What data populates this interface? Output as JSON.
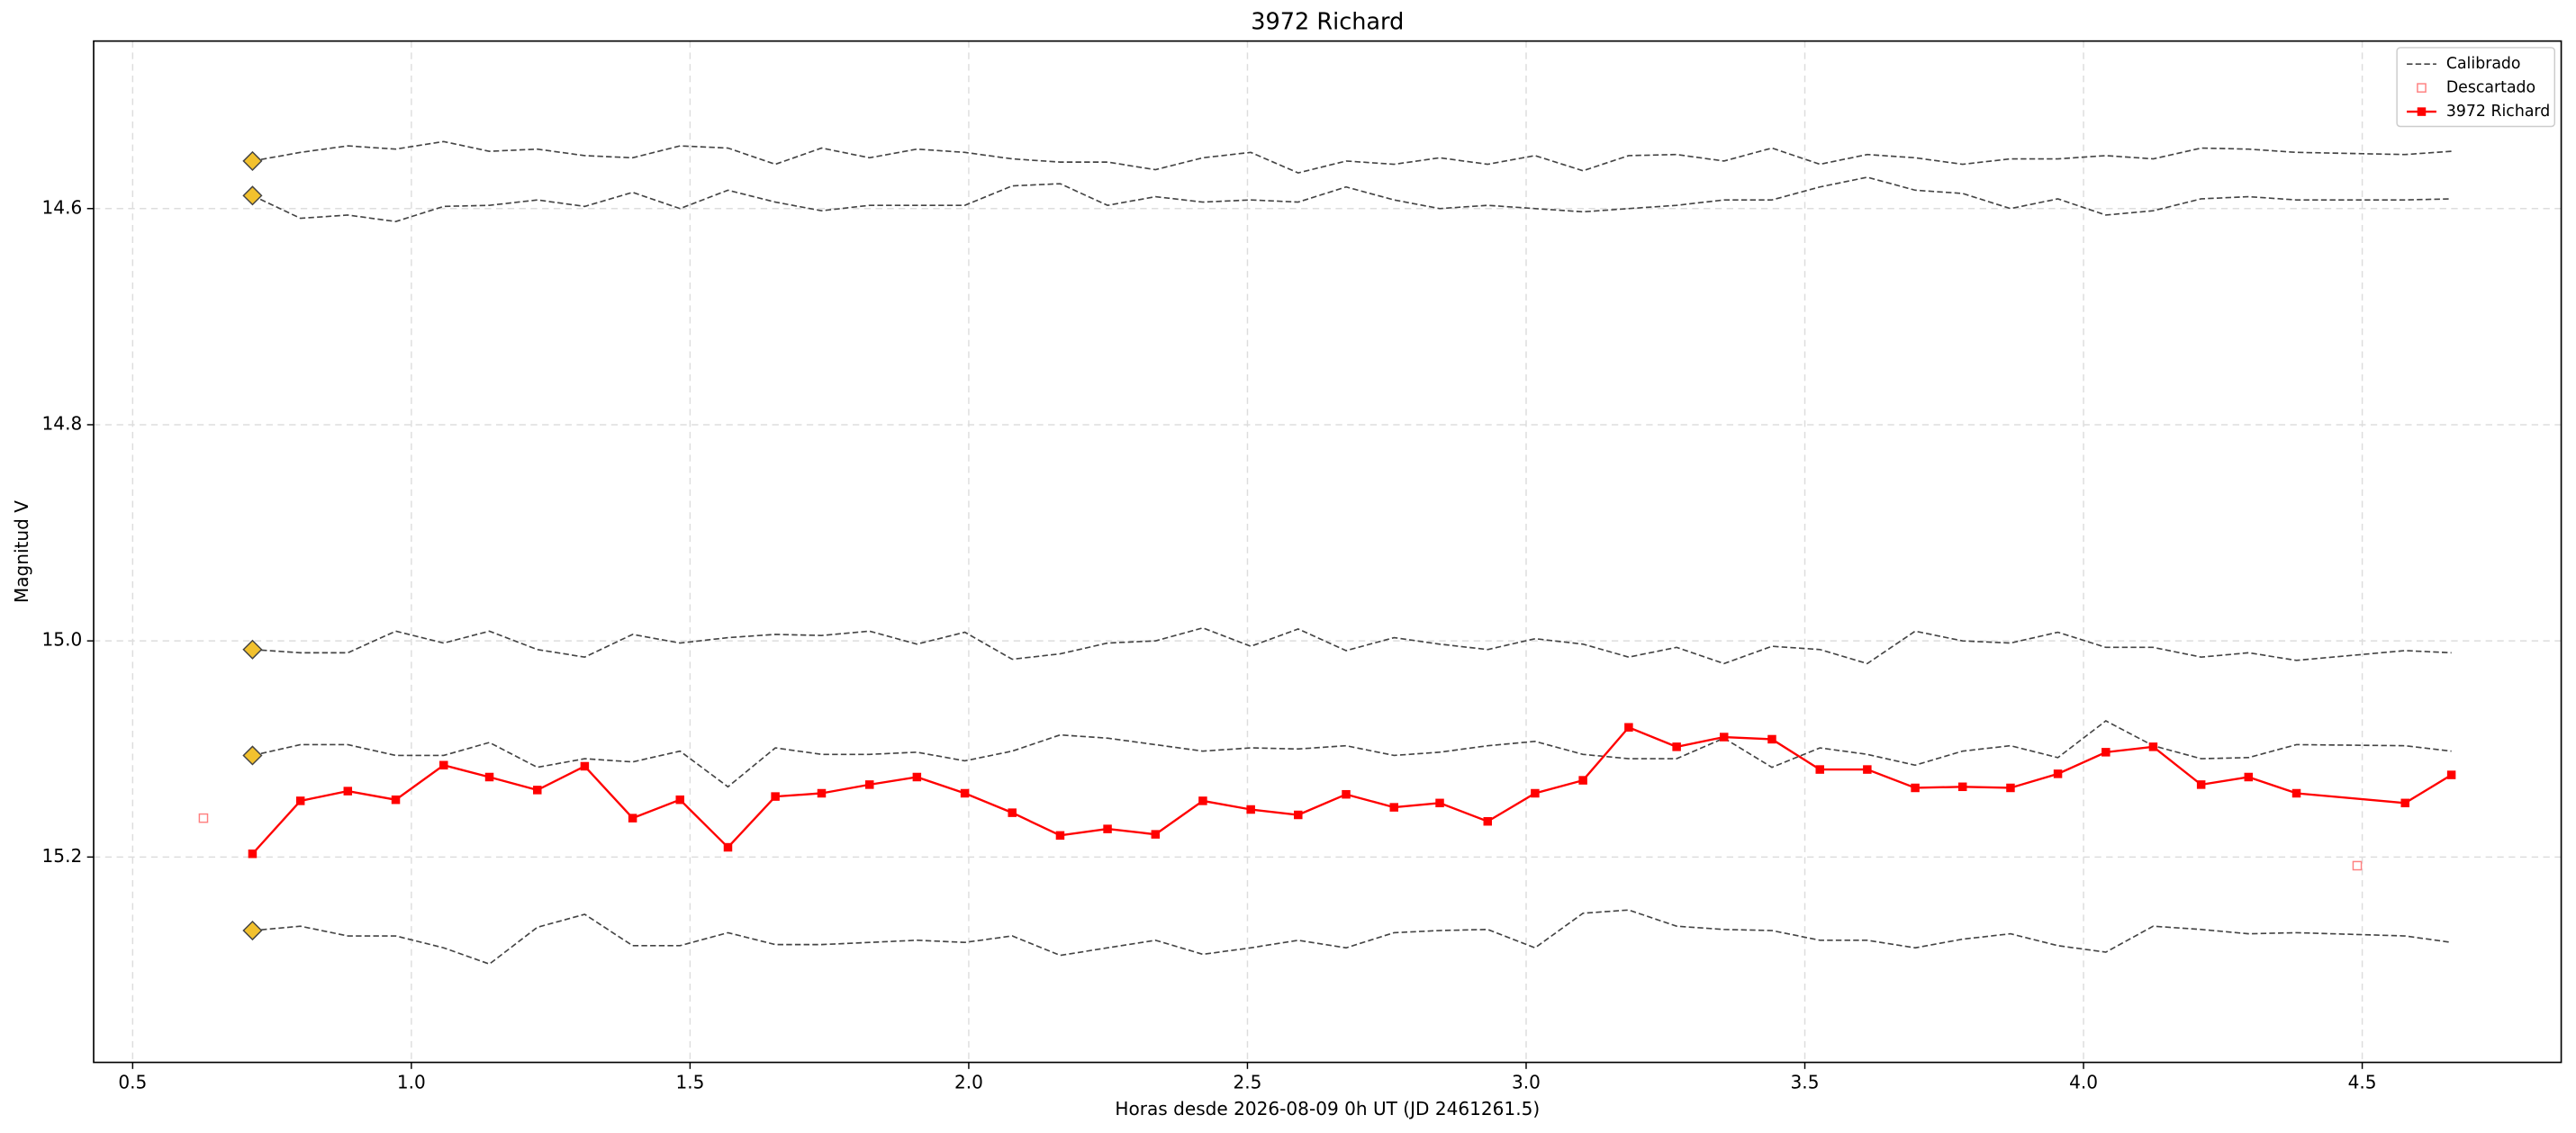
{
  "chart_data": {
    "type": "line",
    "title": "3972 Richard",
    "xlabel": "Horas desde 2026-08-09 0h UT (JD 2461261.5)",
    "ylabel": "Magnitud V",
    "xlim": [
      0.43,
      4.857
    ],
    "ylim": [
      14.445,
      15.39
    ],
    "y_inverted": true,
    "xticks": [
      0.5,
      {
        "value": 1,
        "label": "1.0"
      },
      1.5,
      {
        "value": 2,
        "label": "2.0"
      },
      2.5,
      {
        "value": 3,
        "label": "3.0"
      },
      3.5,
      {
        "value": 4,
        "label": "4.0"
      },
      4.5
    ],
    "yticks": [
      14.6,
      14.8,
      {
        "value": 15,
        "label": "15.0"
      },
      15.2
    ],
    "grid": true,
    "legend": "upper right",
    "x": [
      0.715,
      0.801,
      0.886,
      0.972,
      1.058,
      1.14,
      1.226,
      1.311,
      1.397,
      1.482,
      1.568,
      1.653,
      1.736,
      1.822,
      1.907,
      1.993,
      2.078,
      2.164,
      2.249,
      2.335,
      2.42,
      2.506,
      2.591,
      2.677,
      2.763,
      2.845,
      2.931,
      3.016,
      3.102,
      3.184,
      3.27,
      3.355,
      3.441,
      3.527,
      3.612,
      3.698,
      3.783,
      3.869,
      3.954,
      4.04,
      4.125,
      4.211,
      4.296,
      4.382,
      4.577,
      4.66
    ],
    "series": [
      {
        "name": "Calibrado",
        "color": "#444444",
        "style": "dashed",
        "marker_color": "#f2c12e",
        "lines": [
          [
            14.556,
            14.548,
            14.542,
            14.545,
            14.538,
            14.547,
            14.545,
            14.551,
            14.553,
            14.542,
            14.544,
            14.559,
            14.544,
            14.553,
            14.545,
            14.548,
            14.554,
            14.557,
            14.557,
            14.564,
            14.553,
            14.548,
            14.567,
            14.556,
            14.559,
            14.553,
            14.559,
            14.551,
            14.565,
            14.551,
            14.55,
            14.556,
            14.544,
            14.559,
            14.55,
            14.553,
            14.559,
            14.554,
            14.554,
            14.551,
            14.554,
            14.544,
            14.545,
            14.548,
            14.55,
            14.547
          ],
          [
            14.588,
            14.609,
            14.606,
            14.612,
            14.598,
            14.597,
            14.592,
            14.598,
            14.585,
            14.6,
            14.583,
            14.594,
            14.602,
            14.597,
            14.597,
            14.597,
            14.579,
            14.577,
            14.597,
            14.589,
            14.594,
            14.592,
            14.594,
            14.58,
            14.592,
            14.6,
            14.597,
            14.6,
            14.603,
            14.6,
            14.597,
            14.592,
            14.592,
            14.58,
            14.571,
            14.583,
            14.586,
            14.6,
            14.591,
            14.606,
            14.602,
            14.591,
            14.589,
            14.592,
            14.592,
            14.591
          ],
          [
            15.008,
            15.011,
            15.011,
            14.991,
            15.002,
            14.991,
            15.008,
            15.015,
            14.994,
            15.002,
            14.997,
            14.994,
            14.995,
            14.991,
            15.003,
            14.992,
            15.017,
            15.012,
            15.002,
            15.0,
            14.988,
            15.005,
            14.989,
            15.009,
            14.997,
            15.003,
            15.008,
            14.998,
            15.003,
            15.015,
            15.006,
            15.021,
            15.005,
            15.008,
            15.021,
            14.991,
            15.0,
            15.002,
            14.992,
            15.006,
            15.006,
            15.015,
            15.011,
            15.018,
            15.009,
            15.011
          ],
          [
            15.106,
            15.096,
            15.096,
            15.106,
            15.106,
            15.094,
            15.117,
            15.109,
            15.112,
            15.102,
            15.135,
            15.099,
            15.105,
            15.105,
            15.103,
            15.111,
            15.102,
            15.087,
            15.09,
            15.096,
            15.102,
            15.099,
            15.1,
            15.097,
            15.106,
            15.103,
            15.097,
            15.093,
            15.105,
            15.109,
            15.109,
            15.09,
            15.117,
            15.099,
            15.105,
            15.115,
            15.102,
            15.097,
            15.108,
            15.074,
            15.097,
            15.109,
            15.108,
            15.096,
            15.097,
            15.102
          ],
          [
            15.268,
            15.264,
            15.273,
            15.273,
            15.284,
            15.299,
            15.265,
            15.253,
            15.282,
            15.282,
            15.27,
            15.281,
            15.281,
            15.279,
            15.277,
            15.279,
            15.273,
            15.291,
            15.284,
            15.277,
            15.29,
            15.284,
            15.277,
            15.284,
            15.27,
            15.268,
            15.267,
            15.284,
            15.252,
            15.249,
            15.264,
            15.267,
            15.268,
            15.277,
            15.277,
            15.284,
            15.276,
            15.271,
            15.282,
            15.288,
            15.264,
            15.267,
            15.271,
            15.27,
            15.273,
            15.279
          ]
        ]
      },
      {
        "name": "Descartado",
        "color": "#ff8080",
        "x": [
          0.627,
          4.491
        ],
        "values": [
          15.164,
          15.208
        ]
      },
      {
        "name": "3972 Richard",
        "color": "#ff0000",
        "values": [
          15.197,
          15.148,
          15.139,
          15.147,
          15.115,
          15.126,
          15.138,
          15.116,
          15.164,
          15.147,
          15.191,
          15.144,
          15.141,
          15.133,
          15.126,
          15.141,
          15.159,
          15.18,
          15.174,
          15.179,
          15.148,
          15.156,
          15.161,
          15.142,
          15.154,
          15.15,
          15.167,
          15.141,
          15.129,
          15.08,
          15.098,
          15.089,
          15.091,
          15.119,
          15.119,
          15.136,
          15.135,
          15.136,
          15.123,
          15.103,
          15.098,
          15.133,
          15.126,
          15.141,
          15.15,
          15.124
        ]
      }
    ]
  }
}
